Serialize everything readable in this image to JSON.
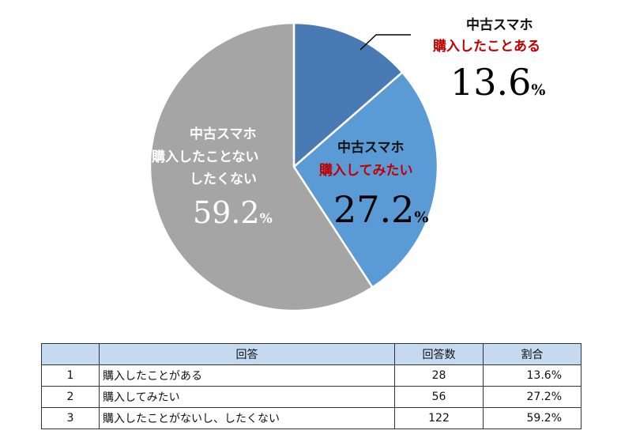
{
  "chart_data": {
    "type": "pie",
    "title": "",
    "series": [
      {
        "name": "",
        "values": [
          13.6,
          27.2,
          59.2
        ]
      }
    ],
    "slices": [
      {
        "line1": "中古スマホ",
        "line2": "購入したことある",
        "line3": "",
        "value": 13.6,
        "display": "13.6",
        "color": "#4a7ab3"
      },
      {
        "line1": "中古スマホ",
        "line2": "購入してみたい",
        "line3": "",
        "value": 27.2,
        "display": "27.2",
        "color": "#5b9bd5"
      },
      {
        "line1": "中古スマホ",
        "line2": "購入したことない",
        "line3": "したくない",
        "value": 59.2,
        "display": "59.2",
        "color": "#a5a5a5"
      }
    ],
    "percent_sign": "%",
    "start_angle_deg": 0,
    "direction": "clockwise"
  },
  "table": {
    "headers": [
      "",
      "回答",
      "回答数",
      "割合"
    ],
    "rows": [
      {
        "no": "1",
        "answer": "購入したことがある",
        "count": "28",
        "ratio": "13.6%"
      },
      {
        "no": "2",
        "answer": "購入してみたい",
        "count": "56",
        "ratio": "27.2%"
      },
      {
        "no": "3",
        "answer": "購入したことがないし、したくない",
        "count": "122",
        "ratio": "59.2%"
      }
    ]
  }
}
